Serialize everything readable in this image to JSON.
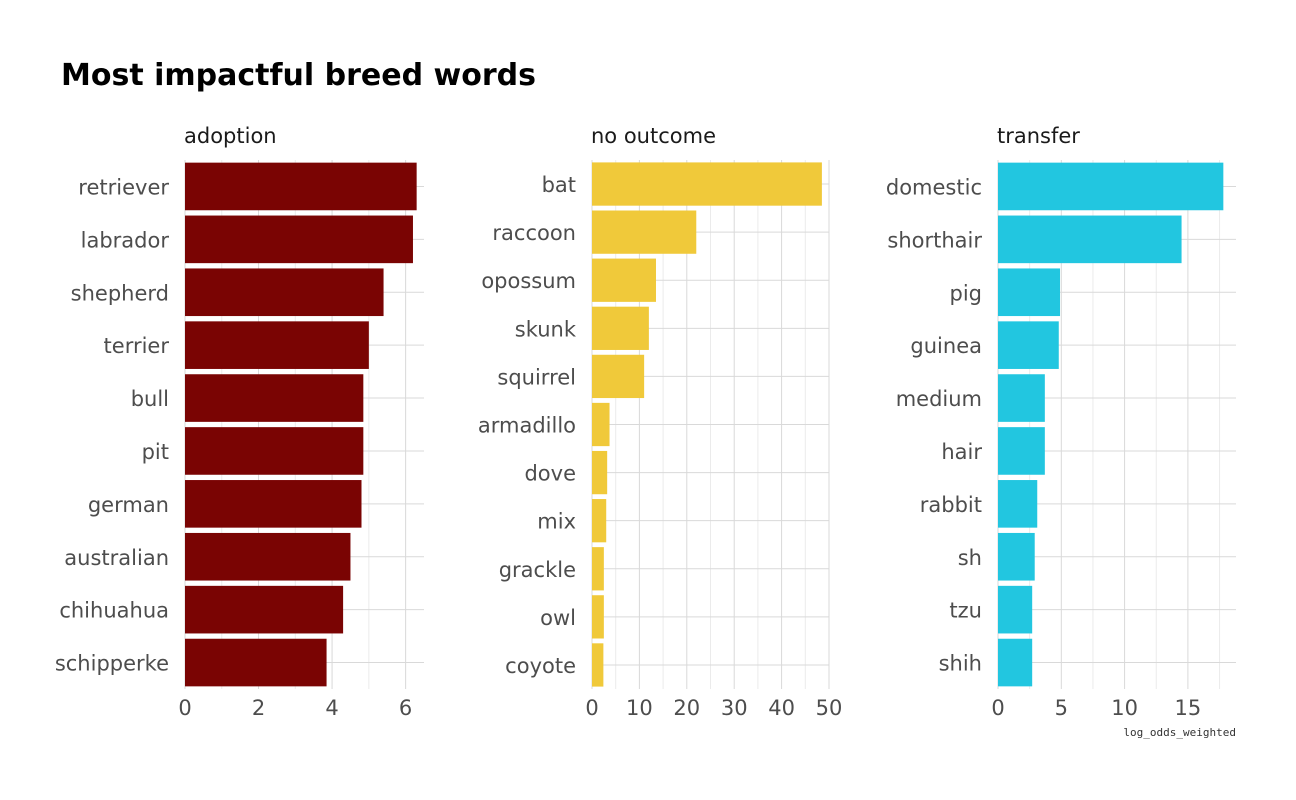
{
  "chart_data": {
    "type": "bar",
    "title": "Most impactful breed words",
    "xlabel": "log_odds_weighted",
    "orientation": "horizontal",
    "facets": [
      {
        "name": "adoption",
        "color": "#7a0403",
        "xlim": [
          0,
          6.5
        ],
        "ticks": [
          0,
          2,
          4,
          6
        ],
        "categories": [
          "retriever",
          "labrador",
          "shepherd",
          "terrier",
          "bull",
          "pit",
          "german",
          "australian",
          "chihuahua",
          "schipperke"
        ],
        "values": [
          6.3,
          6.2,
          5.4,
          5.0,
          4.85,
          4.85,
          4.8,
          4.5,
          4.3,
          3.85
        ]
      },
      {
        "name": "no outcome",
        "color": "#f0c93a",
        "xlim": [
          0,
          50
        ],
        "ticks": [
          0,
          10,
          20,
          30,
          40,
          50
        ],
        "categories": [
          "bat",
          "raccoon",
          "opossum",
          "skunk",
          "squirrel",
          "armadillo",
          "dove",
          "mix",
          "grackle",
          "owl",
          "coyote"
        ],
        "values": [
          48.5,
          22,
          13.5,
          12,
          11,
          3.7,
          3.2,
          3.0,
          2.5,
          2.5,
          2.4
        ]
      },
      {
        "name": "transfer",
        "color": "#22c6e0",
        "xlim": [
          0,
          18.8
        ],
        "ticks": [
          0,
          5,
          10,
          15
        ],
        "categories": [
          "domestic",
          "shorthair",
          "pig",
          "guinea",
          "medium",
          "hair",
          "rabbit",
          "sh",
          "tzu",
          "shih"
        ],
        "values": [
          17.8,
          14.5,
          4.9,
          4.8,
          3.7,
          3.7,
          3.1,
          2.9,
          2.7,
          2.7
        ]
      }
    ]
  }
}
